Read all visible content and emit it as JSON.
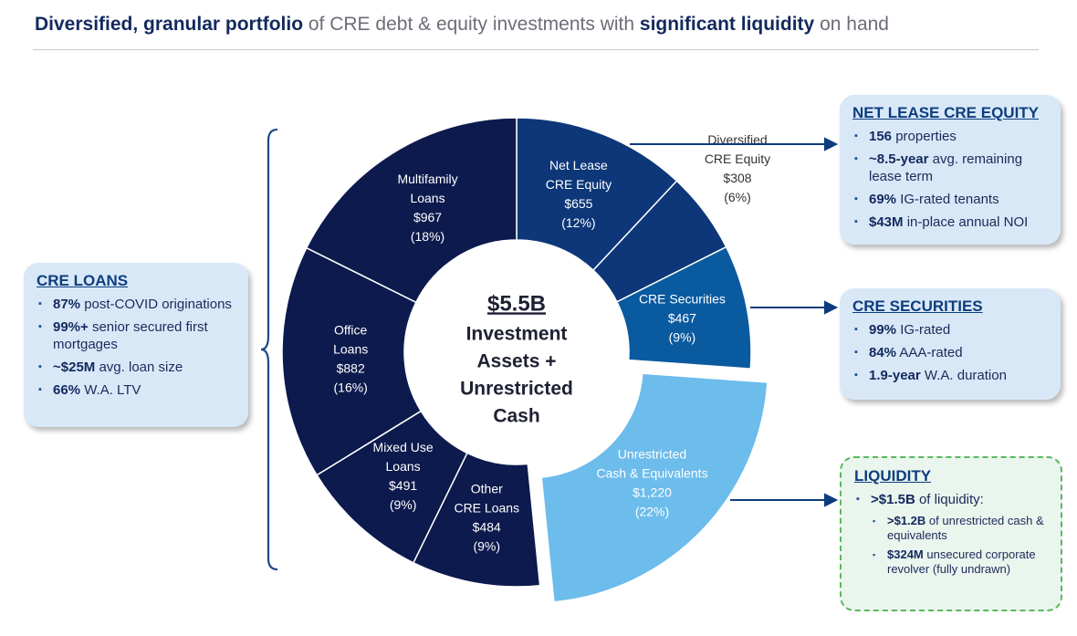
{
  "header": {
    "bold1": "Diversified, granular portfolio",
    "normal1": " of CRE debt & equity investments with ",
    "bold2": "significant liquidity",
    "normal2": " on hand"
  },
  "chart_data": {
    "type": "pie",
    "center": {
      "amount": "$5.5B",
      "line1": "Investment",
      "line2": "Assets +",
      "line3": "Unrestricted",
      "line4": "Cash"
    },
    "slices": [
      {
        "label_lines": [
          "Net Lease",
          "CRE Equity"
        ],
        "amount": "$655",
        "pct": "(12%)",
        "value": 655,
        "color": "#0d3778",
        "text_color": "#ffffff"
      },
      {
        "label_lines": [
          "Diversified",
          "CRE Equity"
        ],
        "amount": "$308",
        "pct": "(6%)",
        "value": 308,
        "color": "#0d3778",
        "text_color": "#333333"
      },
      {
        "label_lines": [
          "CRE Securities"
        ],
        "amount": "$467",
        "pct": "(9%)",
        "value": 467,
        "color": "#0a5aa0",
        "text_color": "#ffffff"
      },
      {
        "label_lines": [
          "Unrestricted",
          "Cash & Equivalents"
        ],
        "amount": "$1,220",
        "pct": "(22%)",
        "value": 1220,
        "color": "#6cbcec",
        "text_color": "#ffffff"
      },
      {
        "label_lines": [
          "Other",
          "CRE Loans"
        ],
        "amount": "$484",
        "pct": "(9%)",
        "value": 484,
        "color": "#0c1a4d",
        "text_color": "#ffffff"
      },
      {
        "label_lines": [
          "Mixed Use",
          "Loans"
        ],
        "amount": "$491",
        "pct": "(9%)",
        "value": 491,
        "color": "#0c1a4d",
        "text_color": "#ffffff"
      },
      {
        "label_lines": [
          "Office",
          "Loans"
        ],
        "amount": "$882",
        "pct": "(16%)",
        "value": 882,
        "color": "#0c1a4d",
        "text_color": "#ffffff"
      },
      {
        "label_lines": [
          "Multifamily",
          "Loans"
        ],
        "amount": "$967",
        "pct": "(18%)",
        "value": 967,
        "color": "#0c1a4d",
        "text_color": "#ffffff"
      }
    ]
  },
  "cre_loans": {
    "title": "CRE LOANS",
    "items": [
      {
        "bold": "87%",
        "text": " post-COVID originations"
      },
      {
        "bold": "99%+",
        "text": " senior secured first mortgages"
      },
      {
        "bold": "~$25M",
        "text": " avg. loan size"
      },
      {
        "bold": "66%",
        "text": " W.A. LTV"
      }
    ]
  },
  "net_lease": {
    "title": "NET LEASE CRE EQUITY",
    "items": [
      {
        "bold": "156",
        "text": " properties"
      },
      {
        "bold": "~8.5-year",
        "text": " avg. remaining lease term"
      },
      {
        "bold": "69%",
        "text": " IG-rated tenants"
      },
      {
        "bold": "$43M",
        "text": " in-place annual NOI"
      }
    ]
  },
  "cre_securities": {
    "title": "CRE SECURITIES",
    "items": [
      {
        "bold": "99%",
        "text": " IG-rated"
      },
      {
        "bold": "84%",
        "text": " AAA-rated"
      },
      {
        "bold": "1.9-year",
        "text": " W.A. duration"
      }
    ]
  },
  "liquidity": {
    "title": "LIQUIDITY",
    "main": {
      "bold": ">$1.5B",
      "text": " of liquidity:"
    },
    "subs": [
      {
        "bold": ">$1.2B",
        "text": " of unrestricted cash & equivalents"
      },
      {
        "bold": "$324M",
        "text": " unsecured corporate revolver (fully undrawn)"
      }
    ]
  }
}
